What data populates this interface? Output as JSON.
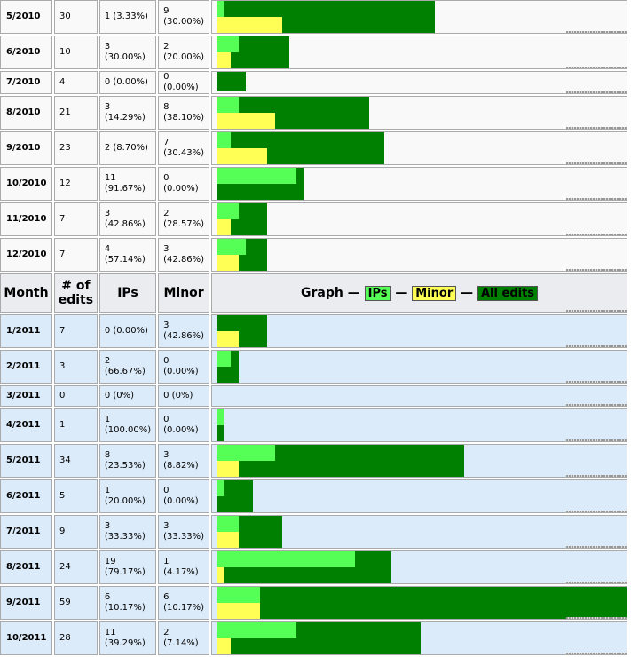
{
  "header": {
    "month": "Month",
    "edits": "# of edits",
    "ips": "IPs",
    "minor": "Minor",
    "graph_label": "Graph —",
    "legend_ips": "IPs",
    "legend_minor": "Minor",
    "legend_all": "All edits",
    "sep": "—"
  },
  "colors": {
    "all_edits": "#008000",
    "ips": "#55ff55",
    "minor": "#ffff55",
    "row_2010": "#f9f9f9",
    "row_2011": "#dcebf9"
  },
  "rows_2010": [
    {
      "month": "5/2010",
      "edits": "30",
      "ips": "1 (3.33%)",
      "minor": "9 (30.00%)",
      "n_all": 30,
      "n_ip": 1,
      "n_minor": 9
    },
    {
      "month": "6/2010",
      "edits": "10",
      "ips": "3 (30.00%)",
      "minor": "2 (20.00%)",
      "n_all": 10,
      "n_ip": 3,
      "n_minor": 2
    },
    {
      "month": "7/2010",
      "edits": "4",
      "ips": "0 (0.00%)",
      "minor": "0 (0.00%)",
      "n_all": 4,
      "n_ip": 0,
      "n_minor": 0
    },
    {
      "month": "8/2010",
      "edits": "21",
      "ips": "3 (14.29%)",
      "minor": "8 (38.10%)",
      "n_all": 21,
      "n_ip": 3,
      "n_minor": 8
    },
    {
      "month": "9/2010",
      "edits": "23",
      "ips": "2 (8.70%)",
      "minor": "7 (30.43%)",
      "n_all": 23,
      "n_ip": 2,
      "n_minor": 7
    },
    {
      "month": "10/2010",
      "edits": "12",
      "ips": "11 (91.67%)",
      "minor": "0 (0.00%)",
      "n_all": 12,
      "n_ip": 11,
      "n_minor": 0
    },
    {
      "month": "11/2010",
      "edits": "7",
      "ips": "3 (42.86%)",
      "minor": "2 (28.57%)",
      "n_all": 7,
      "n_ip": 3,
      "n_minor": 2
    },
    {
      "month": "12/2010",
      "edits": "7",
      "ips": "4 (57.14%)",
      "minor": "3 (42.86%)",
      "n_all": 7,
      "n_ip": 4,
      "n_minor": 3
    }
  ],
  "rows_2011": [
    {
      "month": "1/2011",
      "edits": "7",
      "ips": "0 (0.00%)",
      "minor": "3 (42.86%)",
      "n_all": 7,
      "n_ip": 0,
      "n_minor": 3
    },
    {
      "month": "2/2011",
      "edits": "3",
      "ips": "2 (66.67%)",
      "minor": "0 (0.00%)",
      "n_all": 3,
      "n_ip": 2,
      "n_minor": 0
    },
    {
      "month": "3/2011",
      "edits": "0",
      "ips": "0 (0%)",
      "minor": "0 (0%)",
      "n_all": 0,
      "n_ip": 0,
      "n_minor": 0
    },
    {
      "month": "4/2011",
      "edits": "1",
      "ips": "1 (100.00%)",
      "minor": "0 (0.00%)",
      "n_all": 1,
      "n_ip": 1,
      "n_minor": 0
    },
    {
      "month": "5/2011",
      "edits": "34",
      "ips": "8 (23.53%)",
      "minor": "3 (8.82%)",
      "n_all": 34,
      "n_ip": 8,
      "n_minor": 3
    },
    {
      "month": "6/2011",
      "edits": "5",
      "ips": "1 (20.00%)",
      "minor": "0 (0.00%)",
      "n_all": 5,
      "n_ip": 1,
      "n_minor": 0
    },
    {
      "month": "7/2011",
      "edits": "9",
      "ips": "3 (33.33%)",
      "minor": "3 (33.33%)",
      "n_all": 9,
      "n_ip": 3,
      "n_minor": 3
    },
    {
      "month": "8/2011",
      "edits": "24",
      "ips": "19 (79.17%)",
      "minor": "1 (4.17%)",
      "n_all": 24,
      "n_ip": 19,
      "n_minor": 1
    },
    {
      "month": "9/2011",
      "edits": "59",
      "ips": "6 (10.17%)",
      "minor": "6 (10.17%)",
      "n_all": 59,
      "n_ip": 6,
      "n_minor": 6
    },
    {
      "month": "10/2011",
      "edits": "28",
      "ips": "11 (39.29%)",
      "minor": "2 (7.14%)",
      "n_all": 28,
      "n_ip": 11,
      "n_minor": 2
    }
  ]
}
